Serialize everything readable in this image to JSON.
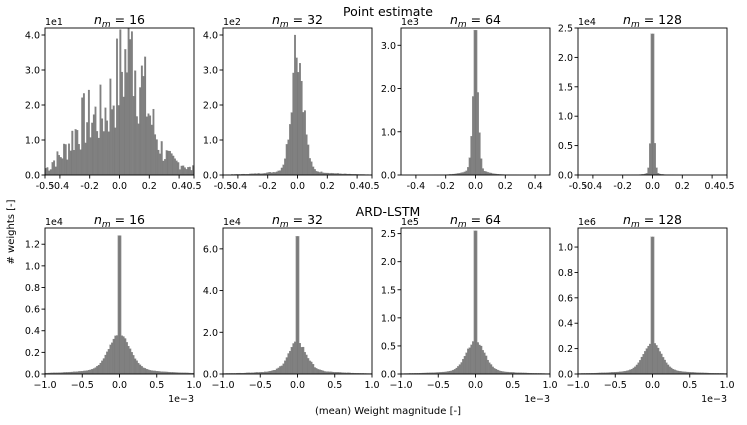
{
  "figure": {
    "row_titles": [
      "Point estimate",
      "ARD-LSTM"
    ],
    "ylabel": "# weights [-]",
    "xlabel": "(mean) Weight magnitude [-]",
    "bar_color": "#808080"
  },
  "chart_data": [
    {
      "type": "bar",
      "row": 0,
      "title": "n_m = 16",
      "title_sub": "m",
      "title_value": "16",
      "scale_label": "1e1",
      "xlim": [
        -0.5,
        0.5
      ],
      "ylim": [
        0,
        4.2
      ],
      "xticks": [
        -0.5,
        -0.4,
        -0.2,
        0.0,
        0.2,
        0.4,
        0.5
      ],
      "xtick_labels": [
        "-0.5",
        "-0.4",
        "-0.2",
        "0.0",
        "0.2",
        "0.4",
        "0.5"
      ],
      "yticks": [
        0,
        1,
        2,
        3,
        4
      ],
      "ytick_labels": [
        "0.0",
        "1.0",
        "2.0",
        "3.0",
        "4.0"
      ],
      "shape": {
        "kind": "broad",
        "peaks": [
          {
            "c": 0.07,
            "s": 0.11,
            "a": 3.0
          },
          {
            "c": -0.22,
            "s": 0.1,
            "a": 1.2
          }
        ],
        "base": 0.3,
        "spike": 4.1,
        "spike_at": 0.085,
        "noise": 0.55
      }
    },
    {
      "type": "bar",
      "row": 0,
      "title": "n_m = 32",
      "title_sub": "m",
      "title_value": "32",
      "scale_label": "1e2",
      "xlim": [
        -0.5,
        0.5
      ],
      "ylim": [
        0,
        4.2
      ],
      "xticks": [
        -0.5,
        -0.4,
        -0.2,
        0.0,
        0.2,
        0.4,
        0.5
      ],
      "xtick_labels": [
        "-0.5",
        "-0.4",
        "-0.2",
        "0.0",
        "0.2",
        "0.4",
        "0.5"
      ],
      "yticks": [
        0,
        1,
        2,
        3,
        4
      ],
      "ytick_labels": [
        "0.0",
        "1.0",
        "2.0",
        "3.0",
        "4.0"
      ],
      "shape": {
        "kind": "peaked",
        "peaks": [
          {
            "c": 0.0,
            "s": 0.04,
            "a": 3.3
          }
        ],
        "base": 0.0,
        "tail": 0.22,
        "tail_s": 0.16,
        "spike": 4.0,
        "spike_at": -0.015,
        "noise": 0.2
      }
    },
    {
      "type": "bar",
      "row": 0,
      "title": "n_m = 64",
      "title_sub": "m",
      "title_value": "64",
      "scale_label": "1e3",
      "xlim": [
        -0.5,
        0.5
      ],
      "ylim": [
        0,
        3.4
      ],
      "xticks": [
        -0.4,
        -0.2,
        0.0,
        0.2,
        0.4
      ],
      "xtick_labels": [
        "-0.4",
        "-0.2",
        "0.0",
        "0.2",
        "0.4"
      ],
      "yticks": [
        0,
        1,
        2,
        3
      ],
      "ytick_labels": [
        "0.0",
        "1.0",
        "2.0",
        "3.0"
      ],
      "shape": {
        "kind": "peaked",
        "peaks": [
          {
            "c": 0.0,
            "s": 0.018,
            "a": 2.7
          }
        ],
        "base": 0.0,
        "tail": 0.25,
        "tail_s": 0.06,
        "spike": 3.35,
        "spike_at": 0.0,
        "noise": 0.1
      }
    },
    {
      "type": "bar",
      "row": 0,
      "title": "n_m = 128",
      "title_sub": "m",
      "title_value": "128",
      "scale_label": "1e4",
      "xlim": [
        -0.5,
        0.5
      ],
      "ylim": [
        0,
        2.5
      ],
      "xticks": [
        -0.5,
        -0.4,
        -0.2,
        0.0,
        0.2,
        0.4,
        0.5
      ],
      "xtick_labels": [
        "-0.5",
        "-0.4",
        "-0.2",
        "0.0",
        "0.2",
        "0.4",
        "0.5"
      ],
      "yticks": [
        0,
        0.5,
        1.0,
        1.5,
        2.0,
        2.5
      ],
      "ytick_labels": [
        "0.0",
        "0.5",
        "1.0",
        "1.5",
        "2.0",
        "2.5"
      ],
      "shape": {
        "kind": "peaked",
        "peaks": [
          {
            "c": 0.0,
            "s": 0.012,
            "a": 1.35
          }
        ],
        "base": 0.0,
        "tail": 0.06,
        "tail_s": 0.04,
        "spike": 2.4,
        "spike_at": 0.0,
        "noise": 0.05
      }
    },
    {
      "type": "bar",
      "row": 1,
      "title": "n_m = 16",
      "title_sub": "m",
      "title_value": "16",
      "scale_label": "1e4",
      "xlim": [
        -1.0,
        1.0
      ],
      "ylim": [
        0,
        1.35
      ],
      "xticks": [
        -1.0,
        -0.5,
        0.0,
        0.5,
        1.0
      ],
      "xtick_labels": [
        "−1.0",
        "−0.5",
        "0.0",
        "0.5",
        "1.0"
      ],
      "yticks": [
        0,
        0.2,
        0.4,
        0.6,
        0.8,
        1.0,
        1.2
      ],
      "ytick_labels": [
        "0.0",
        "0.2",
        "0.4",
        "0.6",
        "0.8",
        "1.0",
        "1.2"
      ],
      "x_scale_label": "1e−3",
      "shape": {
        "kind": "peaked",
        "peaks": [
          {
            "c": 0.0,
            "s": 0.07,
            "a": 0.3
          }
        ],
        "base": 0.0,
        "tail": 0.08,
        "tail_s": 0.22,
        "spike": 1.28,
        "spike_at": 0.0,
        "noise": 0.03
      }
    },
    {
      "type": "bar",
      "row": 1,
      "title": "n_m = 32",
      "title_sub": "m",
      "title_value": "32",
      "scale_label": "1e4",
      "xlim": [
        -1.0,
        1.0
      ],
      "ylim": [
        0,
        7.0
      ],
      "xticks": [
        -1.0,
        -0.5,
        0.0,
        0.5,
        1.0
      ],
      "xtick_labels": [
        "−1.0",
        "−0.5",
        "0.0",
        "0.5",
        "1.0"
      ],
      "yticks": [
        0,
        2,
        4,
        6
      ],
      "ytick_labels": [
        "0.0",
        "2.0",
        "4.0",
        "6.0"
      ],
      "shape": {
        "kind": "peaked",
        "peaks": [
          {
            "c": 0.0,
            "s": 0.06,
            "a": 1.2
          }
        ],
        "base": 0.0,
        "tail": 0.3,
        "tail_s": 0.2,
        "spike": 6.6,
        "spike_at": 0.0,
        "noise": 0.1
      }
    },
    {
      "type": "bar",
      "row": 1,
      "title": "n_m = 64",
      "title_sub": "m",
      "title_value": "64",
      "scale_label": "1e5",
      "xlim": [
        -1.0,
        1.0
      ],
      "ylim": [
        0,
        2.6
      ],
      "xticks": [
        -1.0,
        -0.5,
        0.0,
        0.5,
        1.0
      ],
      "xtick_labels": [
        "−1.0",
        "−0.5",
        "0.0",
        "0.5",
        "1.0"
      ],
      "yticks": [
        0,
        0.5,
        1.0,
        1.5,
        2.0,
        2.5
      ],
      "ytick_labels": [
        "0.0",
        "0.5",
        "1.0",
        "1.5",
        "2.0",
        "2.5"
      ],
      "x_scale_label": "1e−3",
      "shape": {
        "kind": "peaked",
        "peaks": [
          {
            "c": 0.0,
            "s": 0.06,
            "a": 0.5
          }
        ],
        "base": 0.0,
        "tail": 0.1,
        "tail_s": 0.2,
        "spike": 2.55,
        "spike_at": 0.0,
        "noise": 0.04
      }
    },
    {
      "type": "bar",
      "row": 1,
      "title": "n_m = 128",
      "title_sub": "m",
      "title_value": "128",
      "scale_label": "1e6",
      "xlim": [
        -1.0,
        1.0
      ],
      "ylim": [
        0,
        1.15
      ],
      "xticks": [
        -1.0,
        -0.5,
        0.0,
        0.5,
        1.0
      ],
      "xtick_labels": [
        "−1.0",
        "−0.5",
        "0.0",
        "0.5",
        "1.0"
      ],
      "yticks": [
        0,
        0.2,
        0.4,
        0.6,
        0.8,
        1.0
      ],
      "ytick_labels": [
        "0.0",
        "0.2",
        "0.4",
        "0.6",
        "0.8",
        "1.0"
      ],
      "x_scale_label": "1e−3",
      "shape": {
        "kind": "peaked",
        "peaks": [
          {
            "c": 0.0,
            "s": 0.06,
            "a": 0.2
          }
        ],
        "base": 0.0,
        "tail": 0.05,
        "tail_s": 0.2,
        "spike": 1.08,
        "spike_at": 0.0,
        "noise": 0.02
      }
    }
  ]
}
